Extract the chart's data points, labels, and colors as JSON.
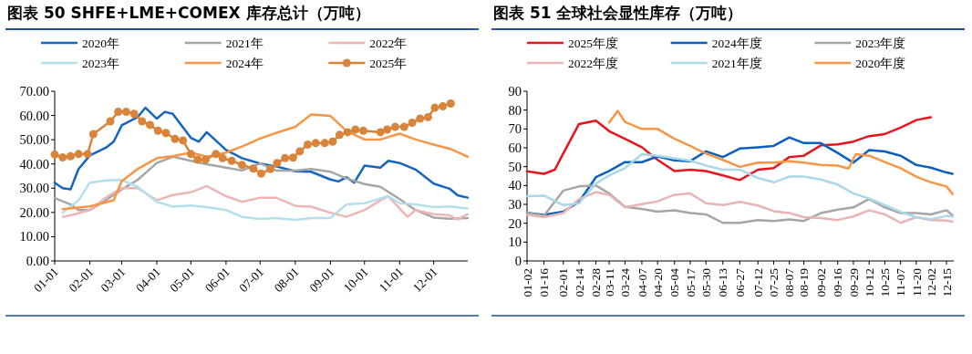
{
  "chart_data": [
    {
      "type": "line",
      "title": "图表 50   SHFE+LME+COMEX 库存总计（万吨）",
      "legend": "top",
      "grid": false,
      "xlim": [
        "--01-01",
        "--12-31"
      ],
      "xticks": [
        {
          "value": "--01-01",
          "label": "01-01"
        },
        {
          "value": "--02-01",
          "label": "02-01"
        },
        {
          "value": "--03-01",
          "label": "03-01"
        },
        {
          "value": "--04-01",
          "label": "04-01"
        },
        {
          "value": "--05-01",
          "label": "05-01"
        },
        {
          "value": "--06-01",
          "label": "06-01"
        },
        {
          "value": "--07-01",
          "label": "07-01"
        },
        {
          "value": "--08-01",
          "label": "08-01"
        },
        {
          "value": "--09-01",
          "label": "09-01"
        },
        {
          "value": "--10-01",
          "label": "10-01"
        },
        {
          "value": "--11-01",
          "label": "11-01"
        },
        {
          "value": "--12-01",
          "label": "12-01"
        }
      ],
      "ylim": [
        0,
        70
      ],
      "yticks": [
        {
          "value": 0,
          "label": "0.00"
        },
        {
          "value": 10,
          "label": "10.00"
        },
        {
          "value": 20,
          "label": "20.00"
        },
        {
          "value": 30,
          "label": "30.00"
        },
        {
          "value": 40,
          "label": "40.00"
        },
        {
          "value": 50,
          "label": "50.00"
        },
        {
          "value": 60,
          "label": "60.00"
        },
        {
          "value": 70,
          "label": "70.00"
        }
      ],
      "series": [
        {
          "name": "2020年",
          "color": "#1565c0",
          "x": [
            "--01-01",
            "--01-08",
            "--01-15",
            "--01-22",
            "--02-01",
            "--02-15",
            "--02-22",
            "--03-01",
            "--03-15",
            "--03-22",
            "--04-01",
            "--04-08",
            "--04-15",
            "--05-01",
            "--05-08",
            "--05-15",
            "--06-01",
            "--06-15",
            "--07-01",
            "--07-15",
            "--08-01",
            "--08-15",
            "--09-01",
            "--09-08",
            "--09-15",
            "--09-22",
            "--10-01",
            "--10-15",
            "--10-22",
            "--11-01",
            "--11-15",
            "--12-01",
            "--12-15",
            "--12-22",
            "--12-31"
          ],
          "values": [
            32.3,
            30.0,
            29.5,
            37.9,
            43.5,
            46.7,
            49.2,
            55.9,
            59.3,
            63.2,
            58.7,
            61.5,
            60.7,
            50.8,
            49.2,
            53.1,
            45.8,
            42.4,
            40.2,
            39.0,
            37.0,
            36.8,
            33.6,
            32.8,
            34.5,
            32.3,
            39.3,
            38.5,
            41.3,
            40.4,
            37.7,
            31.9,
            29.8,
            27.1,
            26.1
          ]
        },
        {
          "name": "2021年",
          "color": "#a6a6a6",
          "x": [
            "--01-01",
            "--01-15",
            "--01-22",
            "--02-01",
            "--02-15",
            "--03-01",
            "--03-15",
            "--04-01",
            "--04-15",
            "--05-01",
            "--05-15",
            "--06-01",
            "--06-15",
            "--07-01",
            "--07-15",
            "--08-01",
            "--08-15",
            "--09-01",
            "--09-15",
            "--10-01",
            "--10-15",
            "--11-01",
            "--11-15",
            "--12-01",
            "--12-15",
            "--12-31"
          ],
          "values": [
            25.9,
            23.3,
            21.0,
            21.0,
            25.0,
            29.5,
            33.4,
            40.4,
            43.0,
            41.3,
            39.9,
            38.5,
            37.3,
            40.2,
            37.3,
            37.3,
            37.9,
            36.8,
            34.0,
            31.7,
            30.6,
            25.5,
            21.0,
            17.9,
            17.4,
            17.7
          ]
        },
        {
          "name": "2022年",
          "color": "#efb5b5",
          "x": [
            "--01-08",
            "--01-15",
            "--02-01",
            "--02-15",
            "--03-01",
            "--03-15",
            "--04-01",
            "--04-15",
            "--05-01",
            "--05-15",
            "--06-01",
            "--06-15",
            "--07-01",
            "--07-15",
            "--08-01",
            "--08-15",
            "--09-01",
            "--09-15",
            "--10-01",
            "--10-15",
            "--10-22",
            "--11-01",
            "--11-08",
            "--11-15",
            "--12-01",
            "--12-15",
            "--12-22",
            "--12-31"
          ],
          "values": [
            18.2,
            18.8,
            21.0,
            26.1,
            30.0,
            30.0,
            25.0,
            27.2,
            28.3,
            30.9,
            26.7,
            24.4,
            26.1,
            26.1,
            22.7,
            22.4,
            19.9,
            18.2,
            21.0,
            25.0,
            26.7,
            21.6,
            18.2,
            21.0,
            19.3,
            18.8,
            17.1,
            19.3
          ]
        },
        {
          "name": "2023年",
          "color": "#b4dfea",
          "x": [
            "--01-08",
            "--01-22",
            "--02-01",
            "--02-15",
            "--03-01",
            "--03-15",
            "--04-01",
            "--04-15",
            "--05-01",
            "--05-15",
            "--06-01",
            "--06-15",
            "--07-01",
            "--07-15",
            "--08-01",
            "--08-15",
            "--09-01",
            "--09-15",
            "--10-01",
            "--10-22",
            "--11-01",
            "--11-15",
            "--12-01",
            "--12-15",
            "--12-31"
          ],
          "values": [
            19.9,
            25.0,
            32.3,
            33.2,
            33.4,
            30.6,
            24.4,
            22.4,
            22.9,
            22.2,
            21.0,
            18.2,
            17.3,
            17.7,
            16.9,
            17.7,
            17.7,
            23.3,
            23.8,
            26.7,
            23.8,
            23.3,
            22.2,
            22.5,
            21.6
          ]
        },
        {
          "name": "2024年",
          "color": "#f79646",
          "x": [
            "--01-08",
            "--02-01",
            "--02-22",
            "--03-01",
            "--03-15",
            "--04-01",
            "--04-15",
            "--05-01",
            "--05-15",
            "--06-01",
            "--06-15",
            "--07-01",
            "--07-15",
            "--08-01",
            "--08-15",
            "--09-01",
            "--09-15",
            "--10-01",
            "--10-15",
            "--11-01",
            "--11-15",
            "--12-01",
            "--12-15",
            "--12-31"
          ],
          "values": [
            21.4,
            22.5,
            25.0,
            32.8,
            37.9,
            42.4,
            43.2,
            44.7,
            43.0,
            44.7,
            47.2,
            50.5,
            52.8,
            55.3,
            60.4,
            59.8,
            53.7,
            50.1,
            50.1,
            52.5,
            50.1,
            48.0,
            46.3,
            43.0
          ]
        },
        {
          "name": "2025年",
          "color": "#d9843b",
          "marker": "circle",
          "x": [
            "--01-01",
            "--01-08",
            "--01-15",
            "--01-22",
            "--01-30",
            "--02-04",
            "--02-19",
            "--02-26",
            "--03-05",
            "--03-12",
            "--03-19",
            "--03-26",
            "--04-02",
            "--04-09",
            "--04-17",
            "--04-24",
            "--05-01",
            "--05-07",
            "--05-14",
            "--05-23",
            "--05-29",
            "--06-06",
            "--06-15",
            "--06-25",
            "--07-02",
            "--07-10",
            "--07-16",
            "--07-23",
            "--07-30",
            "--08-05",
            "--08-12",
            "--08-19",
            "--08-27",
            "--09-03",
            "--09-09",
            "--09-16",
            "--09-23",
            "--09-30",
            "--10-15",
            "--10-21",
            "--10-28",
            "--11-05",
            "--11-12",
            "--11-19",
            "--11-26",
            "--12-02",
            "--12-09",
            "--12-16"
          ],
          "values": [
            43.9,
            42.7,
            43.2,
            44.1,
            44.1,
            52.3,
            57.6,
            61.5,
            61.5,
            60.7,
            57.6,
            56.1,
            53.7,
            52.8,
            50.3,
            49.7,
            44.1,
            41.8,
            41.8,
            44.1,
            42.4,
            41.3,
            39.6,
            38.1,
            36.0,
            37.9,
            40.4,
            42.4,
            42.6,
            45.2,
            48.0,
            48.6,
            48.6,
            49.2,
            52.0,
            53.1,
            54.2,
            53.7,
            53.1,
            54.2,
            55.3,
            55.3,
            57.0,
            58.7,
            59.3,
            63.2,
            63.8,
            64.9
          ]
        }
      ]
    },
    {
      "type": "line",
      "title": "图表 51   全球社会显性库存（万吨）",
      "legend": "top",
      "grid": false,
      "xlim": [
        "--01-02",
        "--12-21"
      ],
      "xticks": [
        {
          "value": "--01-02",
          "label": "01-02"
        },
        {
          "value": "--01-16",
          "label": "01-16"
        },
        {
          "value": "--02-01",
          "label": "02-01"
        },
        {
          "value": "--02-14",
          "label": "02-14"
        },
        {
          "value": "--02-28",
          "label": "02-28"
        },
        {
          "value": "--03-11",
          "label": "03-11"
        },
        {
          "value": "--03-24",
          "label": "03-24"
        },
        {
          "value": "--04-07",
          "label": "04-07"
        },
        {
          "value": "--04-20",
          "label": "04-20"
        },
        {
          "value": "--05-04",
          "label": "05-04"
        },
        {
          "value": "--05-17",
          "label": "05-17"
        },
        {
          "value": "--05-30",
          "label": "05-30"
        },
        {
          "value": "--06-13",
          "label": "06-13"
        },
        {
          "value": "--06-27",
          "label": "06-27"
        },
        {
          "value": "--07-12",
          "label": "07-12"
        },
        {
          "value": "--07-25",
          "label": "07-25"
        },
        {
          "value": "--08-07",
          "label": "08-07"
        },
        {
          "value": "--08-19",
          "label": "08-19"
        },
        {
          "value": "--09-02",
          "label": "09-02"
        },
        {
          "value": "--09-16",
          "label": "09-16"
        },
        {
          "value": "--09-29",
          "label": "09-29"
        },
        {
          "value": "--10-12",
          "label": "10-12"
        },
        {
          "value": "--10-25",
          "label": "10-25"
        },
        {
          "value": "--11-07",
          "label": "11-07"
        },
        {
          "value": "--11-20",
          "label": "11-20"
        },
        {
          "value": "--12-02",
          "label": "12-02"
        },
        {
          "value": "--12-15",
          "label": "12-15"
        }
      ],
      "ylim": [
        0,
        90
      ],
      "yticks": [
        0,
        10,
        20,
        30,
        40,
        50,
        60,
        70,
        80,
        90
      ],
      "series": [
        {
          "name": "2025年度",
          "color": "#e8141c",
          "x": [
            "--01-02",
            "--01-16",
            "--01-25",
            "--02-01",
            "--02-14",
            "--02-28",
            "--03-11",
            "--03-24",
            "--04-07",
            "--04-20",
            "--05-04",
            "--05-17",
            "--05-30",
            "--06-13",
            "--06-27",
            "--07-12",
            "--07-25",
            "--08-07",
            "--08-19",
            "--09-02",
            "--09-16",
            "--09-29",
            "--10-12",
            "--10-25",
            "--11-07",
            "--11-20",
            "--12-02"
          ],
          "values": [
            47.5,
            46.2,
            48.4,
            57.0,
            72.6,
            74.4,
            68.8,
            64.8,
            60.3,
            53.6,
            47.7,
            48.4,
            47.7,
            45.4,
            42.9,
            48.4,
            49.2,
            55.1,
            55.8,
            61.3,
            61.8,
            63.3,
            66.2,
            67.3,
            70.7,
            74.7,
            76.2
          ]
        },
        {
          "name": "2024年度",
          "color": "#0b5fbf",
          "x": [
            "--01-02",
            "--01-16",
            "--02-01",
            "--02-14",
            "--02-28",
            "--03-11",
            "--03-24",
            "--04-07",
            "--04-20",
            "--05-04",
            "--05-17",
            "--05-30",
            "--06-13",
            "--06-27",
            "--07-12",
            "--07-25",
            "--08-07",
            "--08-19",
            "--09-02",
            "--09-16",
            "--09-29",
            "--10-12",
            "--10-25",
            "--11-07",
            "--11-20",
            "--12-02",
            "--12-15",
            "--12-20"
          ],
          "values": [
            25.5,
            24.4,
            26.1,
            31.3,
            44.4,
            47.7,
            52.4,
            52.4,
            55.4,
            53.3,
            52.9,
            58.1,
            55.1,
            59.6,
            60.3,
            61.0,
            65.5,
            62.5,
            62.5,
            57.3,
            52.1,
            58.8,
            58.1,
            55.8,
            50.9,
            49.5,
            46.9,
            46.2
          ]
        },
        {
          "name": "2023年度",
          "color": "#a6a6a6",
          "x": [
            "--01-02",
            "--01-16",
            "--02-01",
            "--02-14",
            "--02-28",
            "--03-11",
            "--03-24",
            "--04-07",
            "--04-20",
            "--05-04",
            "--05-17",
            "--05-30",
            "--06-13",
            "--06-27",
            "--07-12",
            "--07-25",
            "--08-07",
            "--08-19",
            "--09-02",
            "--09-16",
            "--09-29",
            "--10-12",
            "--10-25",
            "--11-07",
            "--11-20",
            "--12-02",
            "--12-15",
            "--12-20"
          ],
          "values": [
            25.5,
            24.0,
            37.3,
            39.5,
            40.0,
            35.8,
            28.7,
            27.6,
            26.1,
            26.9,
            25.4,
            24.7,
            20.2,
            20.2,
            21.7,
            21.2,
            22.0,
            21.2,
            25.4,
            27.2,
            28.4,
            32.8,
            28.4,
            25.4,
            25.4,
            24.7,
            26.9,
            24.2
          ]
        },
        {
          "name": "2022年度",
          "color": "#e8b4b4",
          "x": [
            "--01-02",
            "--01-16",
            "--02-01",
            "--02-14",
            "--02-28",
            "--03-11",
            "--03-24",
            "--04-07",
            "--04-20",
            "--05-04",
            "--05-17",
            "--05-30",
            "--06-13",
            "--06-27",
            "--07-12",
            "--07-25",
            "--08-07",
            "--08-19",
            "--09-02",
            "--09-16",
            "--09-29",
            "--10-12",
            "--10-25",
            "--11-07",
            "--11-20",
            "--12-02",
            "--12-15",
            "--12-20"
          ],
          "values": [
            24.4,
            23.2,
            25.4,
            32.8,
            36.5,
            35.1,
            28.4,
            30.1,
            31.6,
            35.1,
            35.8,
            30.6,
            29.6,
            31.3,
            29.4,
            26.4,
            25.4,
            23.2,
            22.7,
            21.7,
            23.6,
            26.9,
            24.7,
            20.2,
            23.2,
            21.7,
            21.4,
            20.8
          ]
        },
        {
          "name": "2021年度",
          "color": "#a9d8e6",
          "x": [
            "--01-02",
            "--01-16",
            "--02-01",
            "--02-14",
            "--02-28",
            "--03-11",
            "--03-24",
            "--04-07",
            "--04-20",
            "--05-04",
            "--05-17",
            "--05-30",
            "--06-13",
            "--06-27",
            "--07-12",
            "--07-25",
            "--08-07",
            "--08-19",
            "--09-02",
            "--09-16",
            "--09-29",
            "--10-12",
            "--10-25",
            "--11-07",
            "--11-20",
            "--12-02",
            "--12-15",
            "--12-20"
          ],
          "values": [
            34.3,
            34.6,
            29.6,
            30.6,
            41.0,
            45.4,
            49.2,
            56.6,
            55.8,
            54.4,
            53.2,
            50.6,
            48.4,
            48.4,
            44.0,
            41.7,
            44.7,
            44.7,
            43.2,
            40.5,
            35.8,
            33.1,
            29.6,
            26.1,
            23.2,
            22.0,
            23.9,
            23.5
          ]
        },
        {
          "name": "2020年度",
          "color": "#f79646",
          "x": [
            "--03-11",
            "--03-18",
            "--03-24",
            "--04-07",
            "--04-20",
            "--05-04",
            "--05-17",
            "--05-30",
            "--06-13",
            "--06-27",
            "--07-12",
            "--07-25",
            "--08-07",
            "--08-19",
            "--09-02",
            "--09-16",
            "--09-25",
            "--10-01",
            "--10-12",
            "--10-25",
            "--11-07",
            "--11-20",
            "--12-02",
            "--12-15",
            "--12-20"
          ],
          "values": [
            73.4,
            79.6,
            73.7,
            70.0,
            70.0,
            64.8,
            61.0,
            56.9,
            53.6,
            49.9,
            52.1,
            52.1,
            52.9,
            52.1,
            50.9,
            50.6,
            49.0,
            56.6,
            55.8,
            52.4,
            49.2,
            44.7,
            41.7,
            39.5,
            35.5
          ]
        }
      ]
    }
  ]
}
